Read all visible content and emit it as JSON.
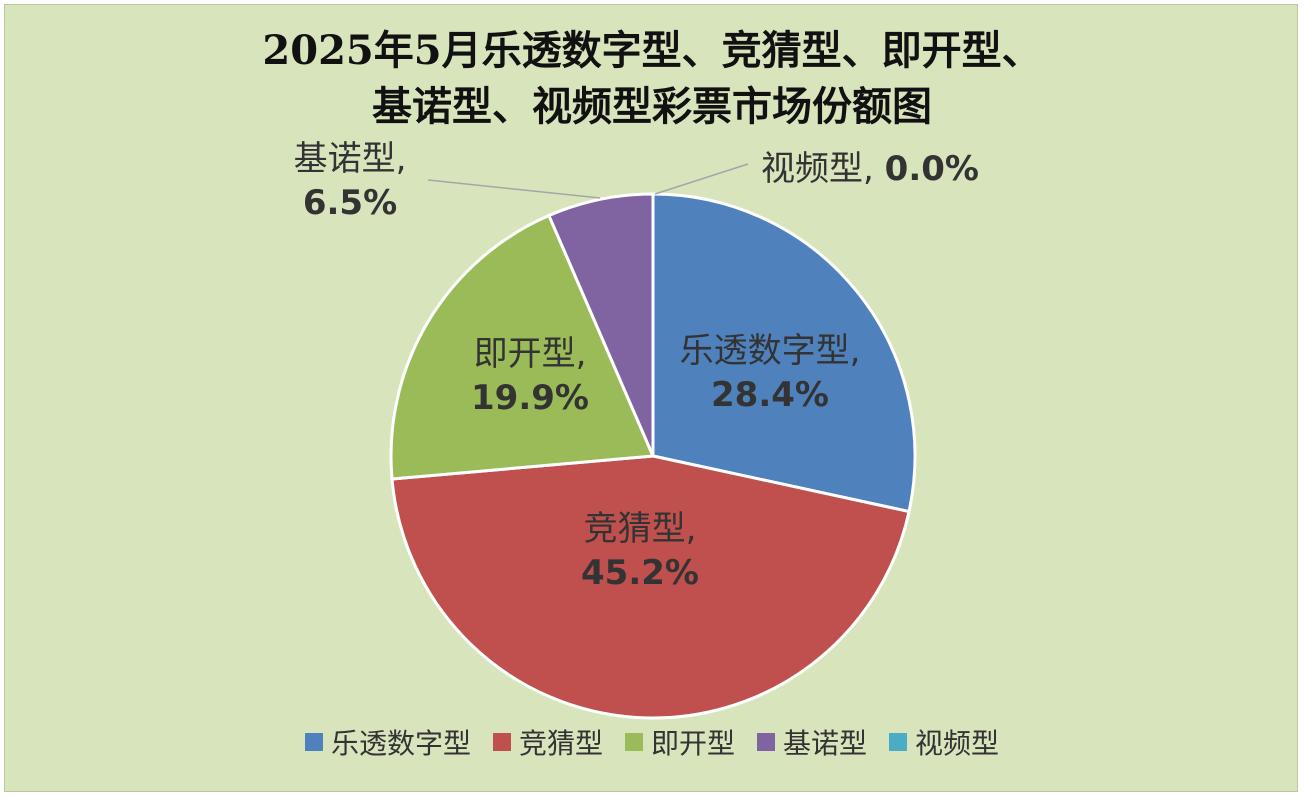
{
  "chart_data": {
    "type": "pie",
    "title_lines": [
      "2025年5月乐透数字型、竞猜型、即开型、",
      "基诺型、视频型彩票市场份额图"
    ],
    "slices": [
      {
        "name": "乐透数字型",
        "value": 28.4,
        "label": "28.4%",
        "color": "#4f81bd"
      },
      {
        "name": "竞猜型",
        "value": 45.2,
        "label": "45.2%",
        "color": "#c0504d"
      },
      {
        "name": "即开型",
        "value": 19.9,
        "label": "19.9%",
        "color": "#9bbb59"
      },
      {
        "name": "基诺型",
        "value": 6.5,
        "label": "6.5%",
        "color": "#8064a2"
      },
      {
        "name": "视频型",
        "value": 0.0,
        "label": "0.0%",
        "color": "#4bacc6"
      }
    ],
    "legend_position": "bottom"
  },
  "colors": {
    "background": "#d8e4bc",
    "slice_border": "#ffffff",
    "label_text": "#333333",
    "leader_line": "#a6a6a6"
  }
}
